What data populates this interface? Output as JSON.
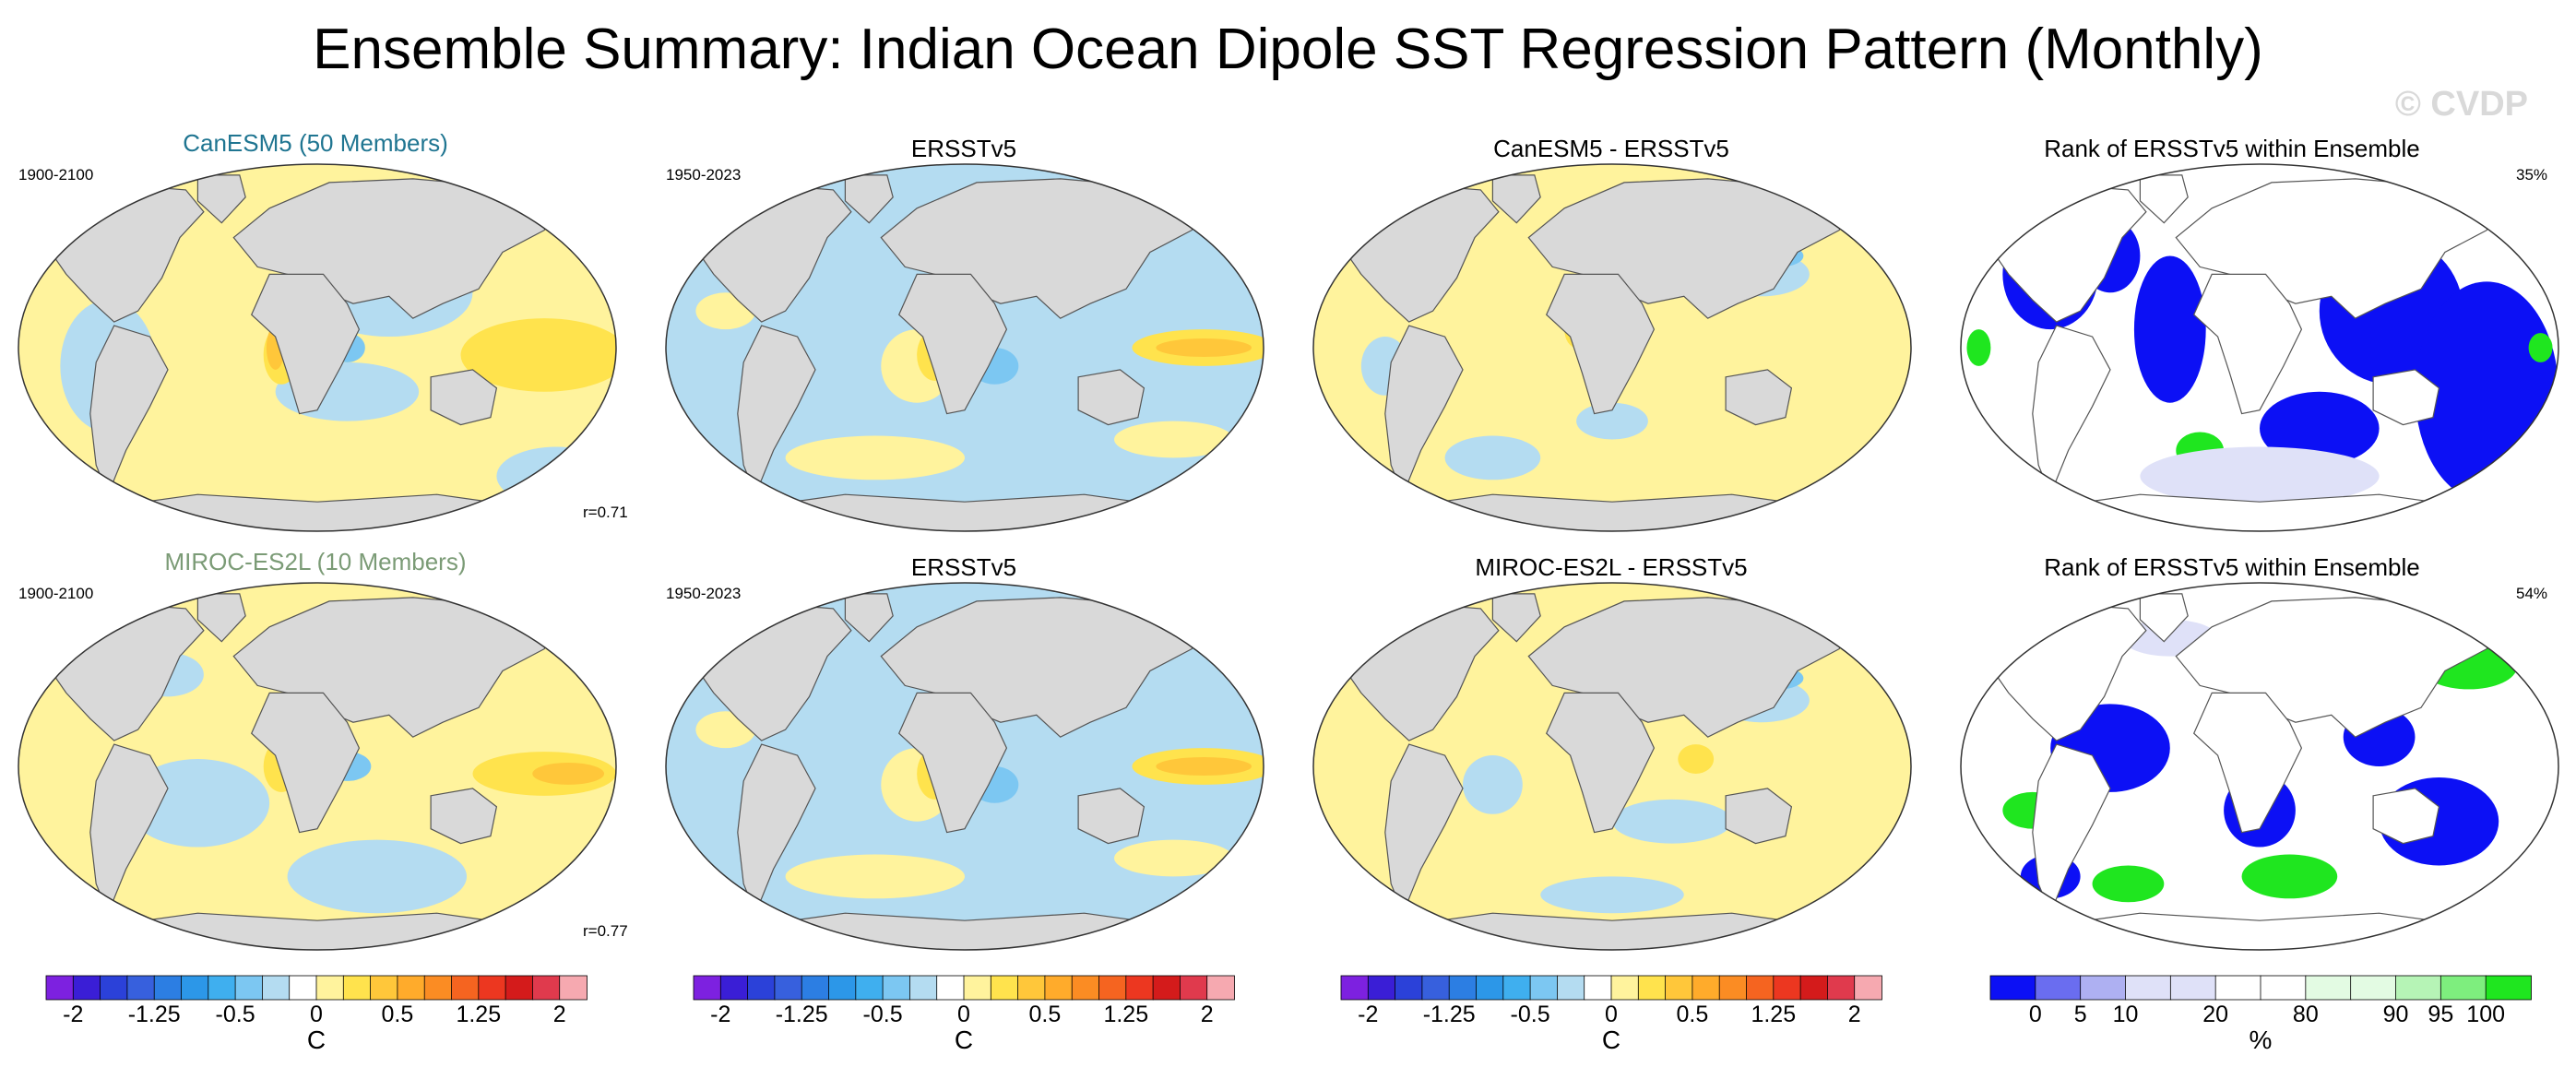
{
  "title": "Ensemble Summary: Indian Ocean Dipole SST Regression Pattern (Monthly)",
  "watermark": "© CVDP",
  "chart_data": [
    {
      "type": "heatmap",
      "title": "CanESM5 (50 Members)",
      "title_color": "#1f7591",
      "period": "1900-2100",
      "stat": "r=0.71"
    },
    {
      "type": "heatmap",
      "title": "ERSSTv5",
      "period": "1950-2023"
    },
    {
      "type": "heatmap",
      "title": "CanESM5 - ERSSTv5"
    },
    {
      "type": "heatmap",
      "title": "Rank of ERSSTv5 within Ensemble",
      "stat": "35%"
    },
    {
      "type": "heatmap",
      "title": "MIROC-ES2L (10 Members)",
      "title_color": "#7b9b76",
      "period": "1900-2100",
      "stat": "r=0.77"
    },
    {
      "type": "heatmap",
      "title": "ERSSTv5",
      "period": "1950-2023"
    },
    {
      "type": "heatmap",
      "title": "MIROC-ES2L - ERSSTv5"
    },
    {
      "type": "heatmap",
      "title": "Rank of ERSSTv5 within Ensemble",
      "stat": "54%"
    }
  ],
  "colorbar_sst": {
    "unit": "C",
    "colors": [
      "#7d21e0",
      "#3a1ed6",
      "#2b41d9",
      "#3760dd",
      "#2c7ee3",
      "#2c97e8",
      "#3fafef",
      "#7cc7f2",
      "#b4dcf1",
      "#ffffff",
      "#fff39d",
      "#ffe34d",
      "#ffc73a",
      "#ffab2b",
      "#fb8c23",
      "#f56420",
      "#ec3720",
      "#d41b1b",
      "#e03a4d",
      "#f6a9b0"
    ],
    "ticks": [
      {
        "label": "-2",
        "pos": 1
      },
      {
        "label": "-1.25",
        "pos": 4
      },
      {
        "label": "-0.5",
        "pos": 7
      },
      {
        "label": "0",
        "pos": 10
      },
      {
        "label": "0.5",
        "pos": 13
      },
      {
        "label": "1.25",
        "pos": 16
      },
      {
        "label": "2",
        "pos": 19
      }
    ]
  },
  "colorbar_rank": {
    "unit": "%",
    "colors": [
      "#0c10f5",
      "#6a6df0",
      "#aeb0f2",
      "#dfe1f8",
      "#dfe1f8",
      "#ffffff",
      "#ffffff",
      "#e3fbe3",
      "#e3fbe3",
      "#b6f4b6",
      "#7eee7e",
      "#1fe61f"
    ],
    "ticks": [
      {
        "label": "0",
        "pos": 1
      },
      {
        "label": "5",
        "pos": 2
      },
      {
        "label": "10",
        "pos": 3
      },
      {
        "label": "20",
        "pos": 5
      },
      {
        "label": "80",
        "pos": 7
      },
      {
        "label": "90",
        "pos": 9
      },
      {
        "label": "95",
        "pos": 10
      },
      {
        "label": "100",
        "pos": 11
      }
    ]
  },
  "colors": {
    "land": "#d9d9d9",
    "pos_weak": "#fff39d",
    "pos_mid": "#ffe34d",
    "pos_strong": "#ffc73a",
    "neg_weak": "#b4dcf1",
    "neg_mid": "#7cc7f2",
    "rank_blue": "#0c10f5",
    "rank_green": "#1fe61f"
  }
}
